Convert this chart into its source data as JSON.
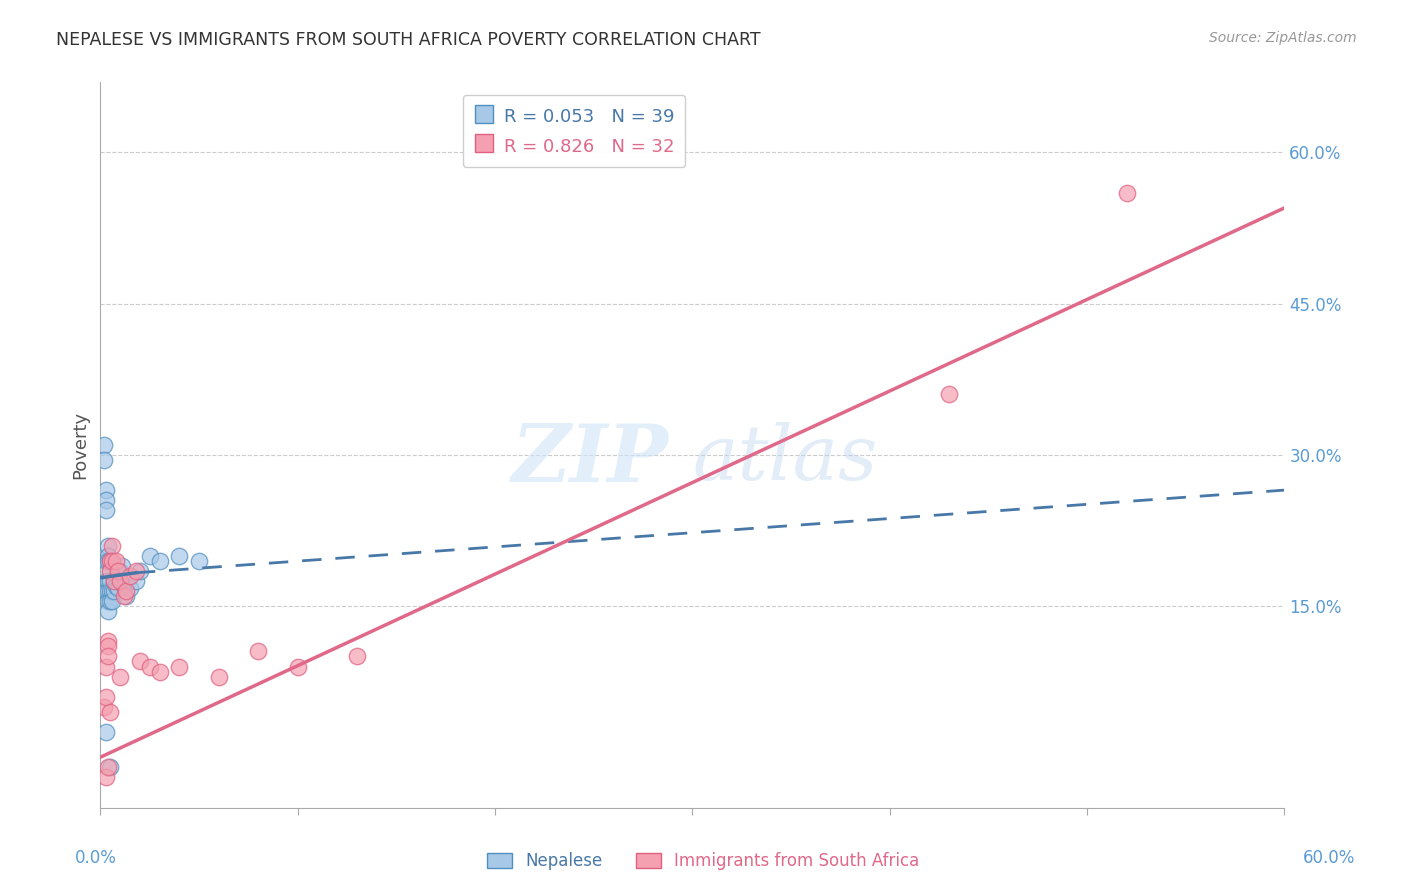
{
  "title": "NEPALESE VS IMMIGRANTS FROM SOUTH AFRICA POVERTY CORRELATION CHART",
  "source": "Source: ZipAtlas.com",
  "ylabel": "Poverty",
  "ylabel_right_ticks": [
    "60.0%",
    "45.0%",
    "30.0%",
    "15.0%"
  ],
  "ylabel_right_positions": [
    0.6,
    0.45,
    0.3,
    0.15
  ],
  "x_min": 0.0,
  "x_max": 0.6,
  "y_min": -0.05,
  "y_max": 0.67,
  "legend_r1": "0.053",
  "legend_n1": "39",
  "legend_r2": "0.826",
  "legend_n2": "32",
  "label1": "Nepalese",
  "label2": "Immigrants from South Africa",
  "color_blue_fill": "#a8c8e8",
  "color_pink_fill": "#f4a0b0",
  "color_blue_edge": "#5090c0",
  "color_pink_edge": "#e06080",
  "color_blue_line": "#4878a8",
  "color_pink_line": "#e06888",
  "nepalese_x": [
    0.002,
    0.002,
    0.003,
    0.003,
    0.003,
    0.003,
    0.003,
    0.003,
    0.003,
    0.004,
    0.004,
    0.004,
    0.004,
    0.004,
    0.004,
    0.004,
    0.005,
    0.005,
    0.005,
    0.005,
    0.005,
    0.005,
    0.006,
    0.006,
    0.007,
    0.007,
    0.008,
    0.009,
    0.01,
    0.011,
    0.012,
    0.013,
    0.015,
    0.018,
    0.02,
    0.025,
    0.03,
    0.04,
    0.05
  ],
  "nepalese_y": [
    0.31,
    0.295,
    0.265,
    0.255,
    0.245,
    0.195,
    0.175,
    0.165,
    0.025,
    0.21,
    0.2,
    0.195,
    0.175,
    0.165,
    0.155,
    0.145,
    0.195,
    0.185,
    0.175,
    0.165,
    0.155,
    -0.01,
    0.165,
    0.155,
    0.175,
    0.165,
    0.17,
    0.168,
    0.185,
    0.19,
    0.17,
    0.16,
    0.168,
    0.175,
    0.185,
    0.2,
    0.195,
    0.2,
    0.195
  ],
  "sa_x": [
    0.002,
    0.003,
    0.003,
    0.003,
    0.004,
    0.004,
    0.004,
    0.004,
    0.005,
    0.005,
    0.005,
    0.006,
    0.006,
    0.007,
    0.008,
    0.009,
    0.01,
    0.01,
    0.012,
    0.013,
    0.015,
    0.018,
    0.02,
    0.025,
    0.03,
    0.04,
    0.06,
    0.08,
    0.1,
    0.13,
    0.43,
    0.52
  ],
  "sa_y": [
    0.05,
    0.06,
    0.09,
    -0.02,
    0.115,
    0.11,
    0.1,
    -0.01,
    0.195,
    0.185,
    0.045,
    0.21,
    0.195,
    0.175,
    0.195,
    0.185,
    0.08,
    0.175,
    0.16,
    0.165,
    0.18,
    0.185,
    0.095,
    0.09,
    0.085,
    0.09,
    0.08,
    0.105,
    0.09,
    0.1,
    0.36,
    0.56
  ],
  "nep_line_x0": 0.0,
  "nep_line_x_solid_end": 0.018,
  "nep_line_x1": 0.6,
  "nep_line_y0": 0.178,
  "nep_line_y_solid_end": 0.183,
  "nep_line_y1": 0.265,
  "sa_line_x0": 0.0,
  "sa_line_x1": 0.6,
  "sa_line_y0": 0.0,
  "sa_line_y1": 0.545
}
